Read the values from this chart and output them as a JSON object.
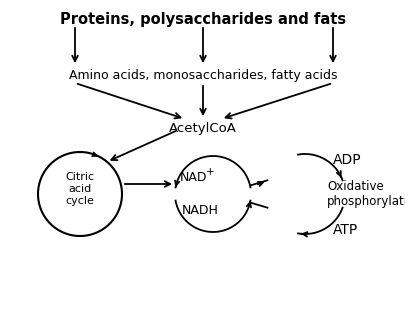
{
  "title": "Proteins, polysaccharides and fats",
  "row2_label": "Amino acids, monosaccharides, fatty acids",
  "acetylcoa_label": "AcetylCoA",
  "citric_label": "Citric\nacid\ncycle",
  "nad_plus_label": "NAD",
  "nad_plus_super": "+",
  "nadh_label": "NADH",
  "adp_label": "ADP",
  "oxphos_label": "Oxidative\nphosphorylation",
  "atp_label": "ATP",
  "bg_color": "#ffffff",
  "text_color": "#000000",
  "title_fontsize": 10.5,
  "body_fontsize": 9.0,
  "small_fontsize": 7.5,
  "arrow_lw": 1.3,
  "arrow_ms": 10
}
